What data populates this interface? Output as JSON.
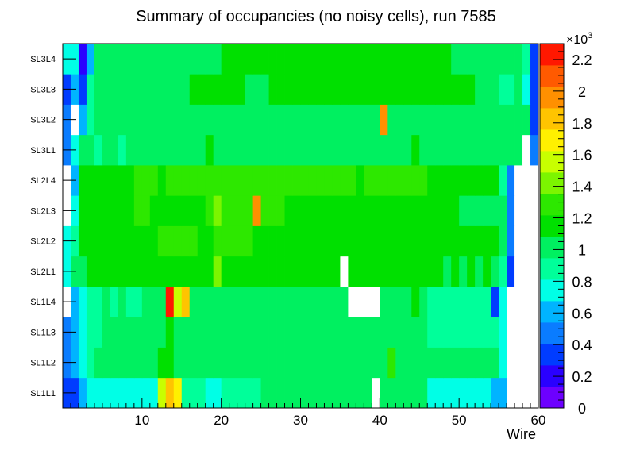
{
  "chart_data": {
    "type": "heatmap",
    "title": "Summary of occupancies (no noisy cells), run 7585",
    "xlabel": "Wire",
    "ylabel": "",
    "x_range": [
      0,
      60
    ],
    "x_ticks": [
      "10",
      "20",
      "30",
      "40",
      "50",
      "60"
    ],
    "x_tick_values": [
      10,
      20,
      30,
      40,
      50,
      60
    ],
    "y_categories": [
      "SL1L1",
      "SL1L2",
      "SL1L3",
      "SL1L4",
      "SL2L1",
      "SL2L2",
      "SL2L3",
      "SL2L4",
      "SL3L1",
      "SL3L2",
      "SL3L3",
      "SL3L4"
    ],
    "z_range": [
      0,
      2300
    ],
    "z_multiplier_label": "×10",
    "z_multiplier_exponent": "3",
    "z_ticks": [
      "0",
      "0.2",
      "0.4",
      "0.6",
      "0.8",
      "1",
      "1.2",
      "1.4",
      "1.6",
      "1.8",
      "2",
      "2.2"
    ],
    "z_tick_values": [
      0,
      200,
      400,
      600,
      800,
      1000,
      1200,
      1400,
      1600,
      1800,
      2000,
      2200
    ],
    "palette": [
      "#6d00ff",
      "#2a00ff",
      "#003cff",
      "#0a7cff",
      "#00b4ff",
      "#00ffe6",
      "#00ff9a",
      "#00f060",
      "#00e000",
      "#2de800",
      "#7cf500",
      "#c8ff00",
      "#fff000",
      "#ffc400",
      "#ff9000",
      "#ff5a00",
      "#ff1800"
    ],
    "empty_color": "#ffffff",
    "rows": [
      {
        "label": "SL1L1",
        "values": [
          400,
          400,
          650,
          750,
          750,
          750,
          750,
          750,
          750,
          750,
          750,
          750,
          1600,
          1800,
          1700,
          900,
          850,
          850,
          750,
          750,
          850,
          850,
          850,
          850,
          900,
          950,
          950,
          950,
          950,
          950,
          950,
          1000,
          1000,
          1000,
          950,
          950,
          950,
          1000,
          950,
          0,
          950,
          950,
          950,
          950,
          950,
          950,
          750,
          750,
          800,
          800,
          750,
          750,
          750,
          750,
          650,
          550,
          0,
          0,
          0,
          0
        ]
      },
      {
        "label": "SL1L2",
        "values": [
          500,
          600,
          800,
          850,
          950,
          1000,
          950,
          1000,
          950,
          950,
          950,
          1000,
          1100,
          1100,
          1050,
          1000,
          1000,
          1000,
          1000,
          1000,
          950,
          1000,
          950,
          950,
          1050,
          1050,
          1000,
          1000,
          1050,
          1050,
          1000,
          1000,
          1000,
          1050,
          1050,
          1000,
          1050,
          1000,
          1000,
          950,
          1050,
          1250,
          1000,
          1000,
          1000,
          1000,
          1000,
          950,
          1000,
          1000,
          950,
          1000,
          950,
          950,
          1000,
          800,
          0,
          0,
          0,
          0
        ]
      },
      {
        "label": "SL1L3",
        "values": [
          500,
          600,
          800,
          850,
          900,
          950,
          950,
          950,
          950,
          950,
          950,
          950,
          1000,
          1200,
          1050,
          950,
          1000,
          1000,
          1000,
          950,
          1000,
          1000,
          1000,
          1050,
          1050,
          1050,
          1050,
          1050,
          1050,
          1050,
          1050,
          1050,
          1050,
          1050,
          1050,
          1050,
          1050,
          1050,
          1050,
          1050,
          1050,
          1050,
          1050,
          1050,
          1050,
          1050,
          900,
          900,
          900,
          900,
          900,
          900,
          900,
          900,
          850,
          700,
          0,
          0,
          0,
          0
        ]
      },
      {
        "label": "SL1L4",
        "values": [
          0,
          600,
          800,
          850,
          900,
          950,
          900,
          950,
          850,
          900,
          950,
          950,
          950,
          2200,
          1600,
          1800,
          950,
          950,
          950,
          950,
          950,
          950,
          950,
          950,
          950,
          950,
          950,
          950,
          950,
          950,
          950,
          950,
          950,
          950,
          950,
          950,
          0,
          0,
          0,
          0,
          950,
          950,
          950,
          950,
          1200,
          950,
          850,
          900,
          850,
          850,
          850,
          850,
          850,
          850,
          300,
          700,
          0,
          0,
          0,
          0
        ]
      },
      {
        "label": "SL2L1",
        "values": [
          800,
          950,
          1050,
          1100,
          1100,
          1100,
          1150,
          1150,
          1100,
          1150,
          1150,
          1150,
          1200,
          1200,
          1200,
          1200,
          1150,
          1150,
          1200,
          1450,
          1200,
          1200,
          1200,
          1200,
          1200,
          1150,
          1150,
          1150,
          1150,
          1150,
          1150,
          1150,
          1150,
          1150,
          1150,
          0,
          1150,
          1150,
          1150,
          1150,
          1150,
          1150,
          1100,
          1150,
          1150,
          1100,
          1100,
          1100,
          1050,
          1100,
          1050,
          1100,
          1050,
          1100,
          950,
          850,
          400,
          0,
          0,
          0
        ]
      },
      {
        "label": "SL2L2",
        "values": [
          800,
          900,
          1100,
          1150,
          1150,
          1150,
          1150,
          1150,
          1150,
          1150,
          1150,
          1150,
          1250,
          1250,
          1250,
          1250,
          1250,
          1200,
          1200,
          1250,
          1250,
          1250,
          1250,
          1250,
          1200,
          1100,
          1200,
          1200,
          1200,
          1200,
          1200,
          1200,
          1200,
          1200,
          1200,
          1200,
          1200,
          1200,
          1200,
          1200,
          1200,
          1150,
          1150,
          1150,
          1150,
          1150,
          1150,
          1150,
          1150,
          1150,
          1100,
          1100,
          1150,
          1150,
          1100,
          950,
          450,
          0,
          0,
          0
        ]
      },
      {
        "label": "SL2L3",
        "values": [
          0,
          800,
          1100,
          1150,
          1200,
          1200,
          1200,
          1200,
          1200,
          1250,
          1300,
          1200,
          1200,
          1200,
          1200,
          1200,
          1200,
          1200,
          1300,
          1400,
          1300,
          1300,
          1300,
          1300,
          1900,
          1300,
          1300,
          1300,
          1200,
          1200,
          1200,
          1200,
          1200,
          1200,
          1200,
          1200,
          1200,
          1100,
          1150,
          1150,
          1150,
          1150,
          1150,
          1150,
          1150,
          1150,
          1150,
          1100,
          1100,
          1100,
          1050,
          1050,
          1050,
          1050,
          1050,
          950,
          450,
          0,
          0,
          0
        ]
      },
      {
        "label": "SL2L4",
        "values": [
          0,
          650,
          1100,
          1150,
          1200,
          1200,
          1200,
          1200,
          1200,
          1250,
          1250,
          1250,
          1200,
          1250,
          1250,
          1250,
          1250,
          1250,
          1250,
          1250,
          1250,
          1250,
          1250,
          1250,
          1250,
          1250,
          1250,
          1250,
          1250,
          1250,
          1250,
          1250,
          1250,
          1250,
          1250,
          1250,
          1250,
          1200,
          1250,
          1250,
          1250,
          1250,
          1250,
          1250,
          1250,
          1250,
          1200,
          1200,
          1200,
          1200,
          1200,
          1200,
          1200,
          1200,
          1150,
          900,
          450,
          0,
          0,
          0
        ]
      },
      {
        "label": "SL3L1",
        "values": [
          500,
          750,
          950,
          1000,
          900,
          1000,
          950,
          900,
          1000,
          1000,
          1000,
          1000,
          1000,
          1000,
          1000,
          1000,
          1000,
          1000,
          1100,
          1050,
          1050,
          1050,
          1050,
          1050,
          1050,
          1000,
          1050,
          1050,
          1050,
          1050,
          1050,
          1050,
          1050,
          1050,
          1050,
          1050,
          1050,
          1050,
          1050,
          1050,
          1050,
          1050,
          1050,
          1050,
          1100,
          1050,
          1050,
          1050,
          1050,
          1000,
          1000,
          1000,
          950,
          950,
          950,
          950,
          1000,
          950,
          0,
          450
        ]
      },
      {
        "label": "SL3L2",
        "values": [
          500,
          0,
          600,
          900,
          950,
          950,
          950,
          950,
          950,
          950,
          950,
          950,
          950,
          950,
          950,
          950,
          950,
          950,
          950,
          950,
          950,
          950,
          950,
          950,
          1000,
          1000,
          1000,
          1000,
          1000,
          1000,
          1000,
          1000,
          1000,
          1000,
          1000,
          1000,
          1000,
          1000,
          1000,
          1000,
          1900,
          1000,
          1000,
          1000,
          1000,
          1000,
          1000,
          1000,
          1000,
          1000,
          1050,
          1050,
          1050,
          1050,
          1000,
          1000,
          1000,
          1000,
          950,
          400
        ]
      },
      {
        "label": "SL3L3",
        "values": [
          400,
          600,
          350,
          850,
          950,
          1000,
          1000,
          1000,
          1000,
          1000,
          1000,
          1050,
          1050,
          1050,
          1050,
          1050,
          1100,
          1100,
          1100,
          1100,
          1100,
          1100,
          1100,
          1050,
          1050,
          1050,
          1100,
          1100,
          1150,
          1150,
          1150,
          1150,
          1150,
          1150,
          1150,
          1150,
          1150,
          1150,
          1150,
          1150,
          1100,
          1100,
          1100,
          1100,
          1100,
          1100,
          1100,
          1100,
          1100,
          1100,
          1100,
          1100,
          1050,
          1050,
          950,
          900,
          900,
          950,
          750,
          400
        ]
      },
      {
        "label": "SL3L4",
        "values": [
          700,
          800,
          250,
          600,
          950,
          950,
          1000,
          1000,
          1000,
          1000,
          1000,
          1000,
          1000,
          1000,
          1050,
          1050,
          1050,
          1050,
          1050,
          1050,
          1100,
          1100,
          1100,
          1100,
          1100,
          1100,
          1150,
          1150,
          1150,
          1150,
          1150,
          1150,
          1150,
          1150,
          1150,
          1150,
          1150,
          1150,
          1150,
          1150,
          1150,
          1150,
          1150,
          1150,
          1150,
          1150,
          1150,
          1100,
          1100,
          1050,
          1050,
          1050,
          1000,
          1000,
          1000,
          1000,
          1000,
          1000,
          900,
          400
        ]
      }
    ]
  }
}
